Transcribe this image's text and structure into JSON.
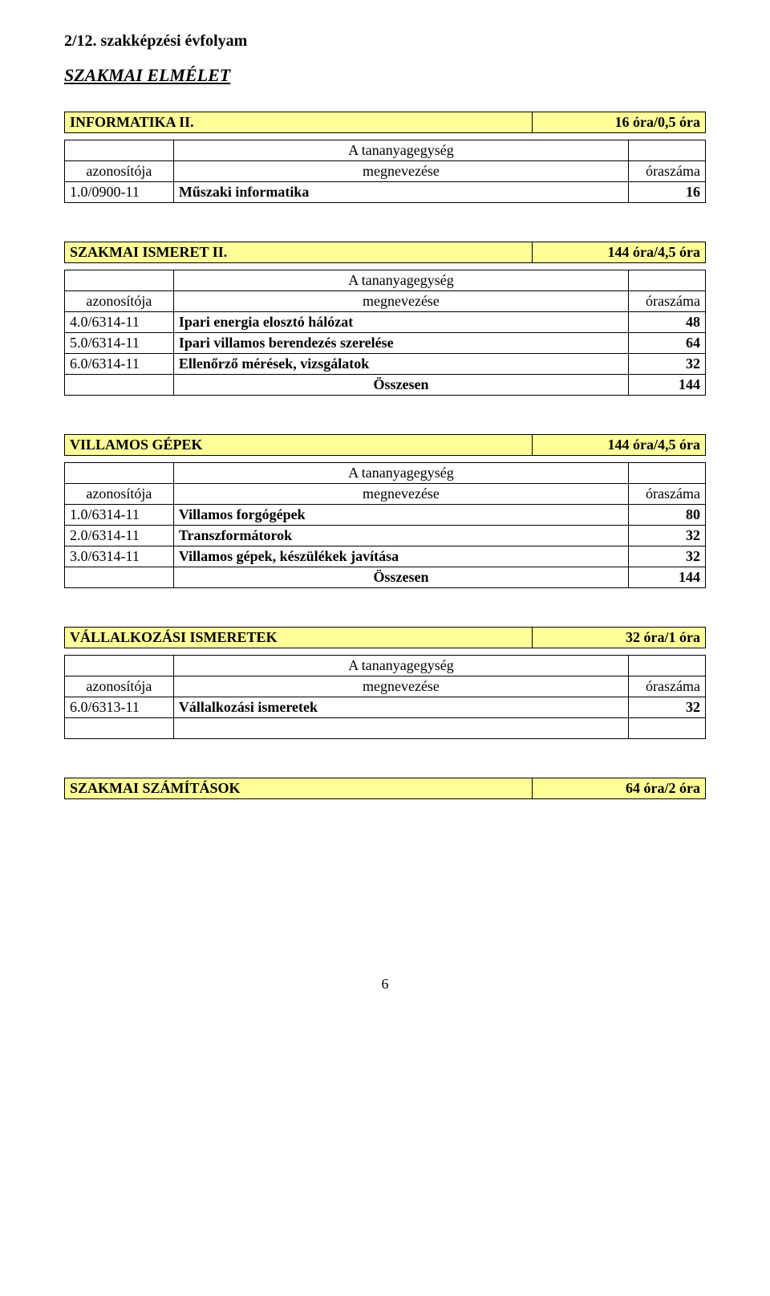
{
  "page_number": "6",
  "headings": {
    "grade": "2/12. szakképzési évfolyam",
    "section": "SZAKMAI ELMÉLET"
  },
  "header_labels": {
    "id": "azonosítója",
    "unit": "A tananyagegység",
    "name": "megnevezése",
    "hours_col": "óraszáma",
    "total": "Összesen"
  },
  "blocks": [
    {
      "title": "INFORMATIKA II.",
      "hours": "16  óra/0,5 óra",
      "rows": [
        {
          "id": "1.0/0900-11",
          "name": "Műszaki informatika",
          "num": "16"
        }
      ],
      "total": null
    },
    {
      "title": "SZAKMAI ISMERET II.",
      "hours": "144 óra/4,5 óra",
      "rows": [
        {
          "id": "4.0/6314-11",
          "name": "Ipari energia elosztó hálózat",
          "num": "48"
        },
        {
          "id": "5.0/6314-11",
          "name": "Ipari villamos berendezés szerelése",
          "num": "64"
        },
        {
          "id": "6.0/6314-11",
          "name": "Ellenőrző mérések, vizsgálatok",
          "num": "32"
        }
      ],
      "total": "144"
    },
    {
      "title": "VILLAMOS GÉPEK",
      "hours": "144 óra/4,5 óra",
      "rows": [
        {
          "id": "1.0/6314-11",
          "name": "Villamos forgógépek",
          "num": "80"
        },
        {
          "id": "2.0/6314-11",
          "name": "Transzformátorok",
          "num": "32"
        },
        {
          "id": "3.0/6314-11",
          "name": "Villamos gépek, készülékek javítása",
          "num": "32"
        }
      ],
      "total": "144"
    },
    {
      "title": "VÁLLALKOZÁSI ISMERETEK",
      "hours": "32 óra/1 óra",
      "rows": [
        {
          "id": "6.0/6313-11",
          "name": "Vállalkozási ismeretek",
          "num": "32"
        },
        {
          "id": "",
          "name": "",
          "num": ""
        }
      ],
      "total": null
    },
    {
      "title": "SZAKMAI SZÁMÍTÁSOK",
      "hours": "64 óra/2 óra",
      "rows": null,
      "total": null
    }
  ],
  "colors": {
    "highlight": "#ffff99",
    "border": "#000000",
    "background": "#ffffff",
    "text": "#000000"
  }
}
